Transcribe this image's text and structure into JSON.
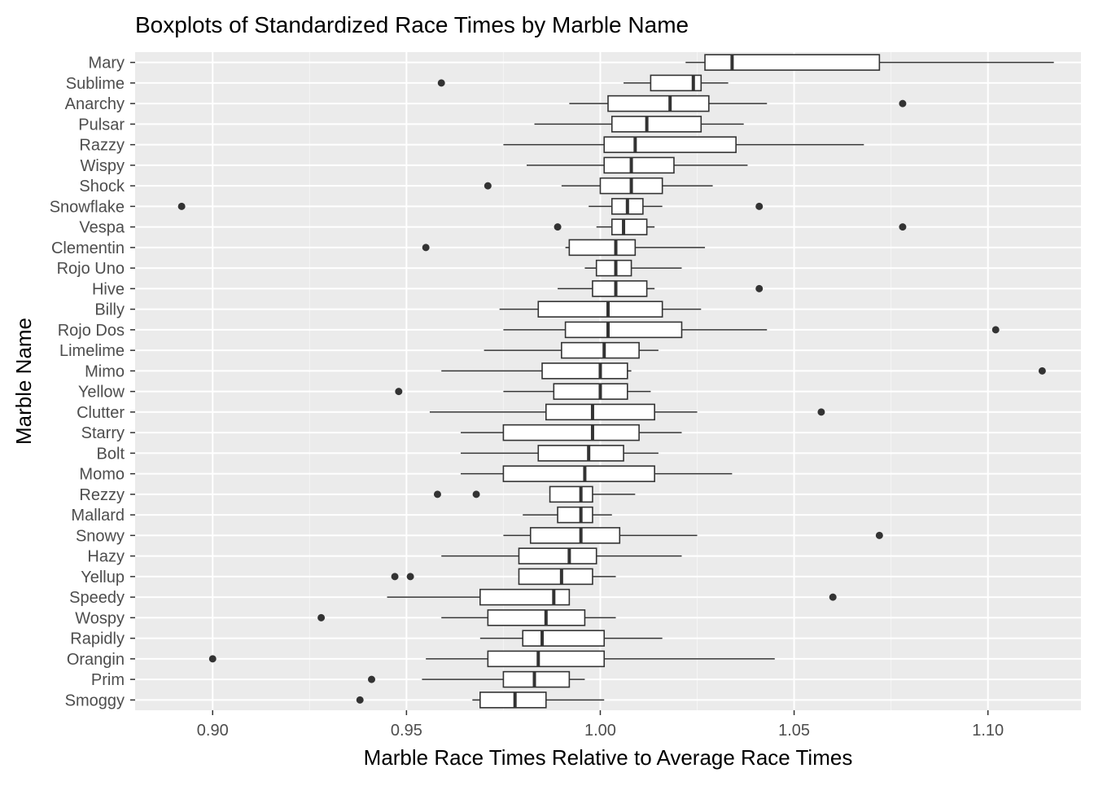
{
  "chart_data": {
    "type": "boxplot",
    "title": "Boxplots of Standardized Race Times by Marble Name",
    "xlabel": "Marble Race Times Relative to Average Race Times",
    "ylabel": "Marble Name",
    "xlim": [
      0.88,
      1.124
    ],
    "x_ticks": [
      0.9,
      0.95,
      1.0,
      1.05,
      1.1
    ],
    "x_tick_labels": [
      "0.90",
      "0.95",
      "1.00",
      "1.05",
      "1.10"
    ],
    "grid": true,
    "colors": {
      "panel_background": "#ebebeb",
      "grid_major": "#ffffff",
      "grid_minor": "#f5f5f5",
      "box_fill": "#ffffff",
      "box_stroke": "#333333",
      "outlier": "#333333",
      "text": "#000000",
      "tick_text": "#4d4d4d"
    },
    "categories": [
      "Mary",
      "Sublime",
      "Anarchy",
      "Pulsar",
      "Razzy",
      "Wispy",
      "Shock",
      "Snowflake",
      "Vespa",
      "Clementin",
      "Rojo Uno",
      "Hive",
      "Billy",
      "Rojo Dos",
      "Limelime",
      "Mimo",
      "Yellow",
      "Clutter",
      "Starry",
      "Bolt",
      "Momo",
      "Rezzy",
      "Mallard",
      "Snowy",
      "Hazy",
      "Yellup",
      "Speedy",
      "Wospy",
      "Rapidly",
      "Orangin",
      "Prim",
      "Smoggy"
    ],
    "boxes": [
      {
        "name": "Mary",
        "min": 1.022,
        "q1": 1.027,
        "median": 1.034,
        "q3": 1.072,
        "max": 1.117,
        "outliers": []
      },
      {
        "name": "Sublime",
        "min": 1.006,
        "q1": 1.013,
        "median": 1.024,
        "q3": 1.026,
        "max": 1.033,
        "outliers": [
          0.959
        ]
      },
      {
        "name": "Anarchy",
        "min": 0.992,
        "q1": 1.002,
        "median": 1.018,
        "q3": 1.028,
        "max": 1.043,
        "outliers": [
          1.078
        ]
      },
      {
        "name": "Pulsar",
        "min": 0.983,
        "q1": 1.003,
        "median": 1.012,
        "q3": 1.026,
        "max": 1.037,
        "outliers": []
      },
      {
        "name": "Razzy",
        "min": 0.975,
        "q1": 1.001,
        "median": 1.009,
        "q3": 1.035,
        "max": 1.068,
        "outliers": []
      },
      {
        "name": "Wispy",
        "min": 0.981,
        "q1": 1.001,
        "median": 1.008,
        "q3": 1.019,
        "max": 1.038,
        "outliers": []
      },
      {
        "name": "Shock",
        "min": 0.99,
        "q1": 1.0,
        "median": 1.008,
        "q3": 1.016,
        "max": 1.029,
        "outliers": [
          0.971
        ]
      },
      {
        "name": "Snowflake",
        "min": 0.997,
        "q1": 1.003,
        "median": 1.007,
        "q3": 1.011,
        "max": 1.016,
        "outliers": [
          0.892,
          1.041
        ]
      },
      {
        "name": "Vespa",
        "min": 0.999,
        "q1": 1.003,
        "median": 1.006,
        "q3": 1.012,
        "max": 1.014,
        "outliers": [
          0.989,
          1.078
        ]
      },
      {
        "name": "Clementin",
        "min": 0.991,
        "q1": 0.992,
        "median": 1.004,
        "q3": 1.009,
        "max": 1.027,
        "outliers": [
          0.955
        ]
      },
      {
        "name": "Rojo Uno",
        "min": 0.996,
        "q1": 0.999,
        "median": 1.004,
        "q3": 1.008,
        "max": 1.021,
        "outliers": []
      },
      {
        "name": "Hive",
        "min": 0.989,
        "q1": 0.998,
        "median": 1.004,
        "q3": 1.012,
        "max": 1.014,
        "outliers": [
          1.041
        ]
      },
      {
        "name": "Billy",
        "min": 0.974,
        "q1": 0.984,
        "median": 1.002,
        "q3": 1.016,
        "max": 1.026,
        "outliers": []
      },
      {
        "name": "Rojo Dos",
        "min": 0.975,
        "q1": 0.991,
        "median": 1.002,
        "q3": 1.021,
        "max": 1.043,
        "outliers": [
          1.102
        ]
      },
      {
        "name": "Limelime",
        "min": 0.97,
        "q1": 0.99,
        "median": 1.001,
        "q3": 1.01,
        "max": 1.015,
        "outliers": []
      },
      {
        "name": "Mimo",
        "min": 0.959,
        "q1": 0.985,
        "median": 1.0,
        "q3": 1.007,
        "max": 1.008,
        "outliers": [
          1.114
        ]
      },
      {
        "name": "Yellow",
        "min": 0.975,
        "q1": 0.988,
        "median": 1.0,
        "q3": 1.007,
        "max": 1.013,
        "outliers": [
          0.948
        ]
      },
      {
        "name": "Clutter",
        "min": 0.956,
        "q1": 0.986,
        "median": 0.998,
        "q3": 1.014,
        "max": 1.025,
        "outliers": [
          1.057
        ]
      },
      {
        "name": "Starry",
        "min": 0.964,
        "q1": 0.975,
        "median": 0.998,
        "q3": 1.01,
        "max": 1.021,
        "outliers": []
      },
      {
        "name": "Bolt",
        "min": 0.964,
        "q1": 0.984,
        "median": 0.997,
        "q3": 1.006,
        "max": 1.015,
        "outliers": []
      },
      {
        "name": "Momo",
        "min": 0.964,
        "q1": 0.975,
        "median": 0.996,
        "q3": 1.014,
        "max": 1.034,
        "outliers": []
      },
      {
        "name": "Rezzy",
        "min": 0.987,
        "q1": 0.987,
        "median": 0.995,
        "q3": 0.998,
        "max": 1.009,
        "outliers": [
          0.958,
          0.968
        ]
      },
      {
        "name": "Mallard",
        "min": 0.98,
        "q1": 0.989,
        "median": 0.995,
        "q3": 0.998,
        "max": 1.003,
        "outliers": []
      },
      {
        "name": "Snowy",
        "min": 0.975,
        "q1": 0.982,
        "median": 0.995,
        "q3": 1.005,
        "max": 1.025,
        "outliers": [
          1.072
        ]
      },
      {
        "name": "Hazy",
        "min": 0.959,
        "q1": 0.979,
        "median": 0.992,
        "q3": 0.999,
        "max": 1.021,
        "outliers": []
      },
      {
        "name": "Yellup",
        "min": 0.979,
        "q1": 0.979,
        "median": 0.99,
        "q3": 0.998,
        "max": 1.004,
        "outliers": [
          0.947,
          0.951
        ]
      },
      {
        "name": "Speedy",
        "min": 0.945,
        "q1": 0.969,
        "median": 0.988,
        "q3": 0.992,
        "max": 0.992,
        "outliers": [
          1.06
        ]
      },
      {
        "name": "Wospy",
        "min": 0.959,
        "q1": 0.971,
        "median": 0.986,
        "q3": 0.996,
        "max": 1.004,
        "outliers": [
          0.928
        ]
      },
      {
        "name": "Rapidly",
        "min": 0.969,
        "q1": 0.98,
        "median": 0.985,
        "q3": 1.001,
        "max": 1.016,
        "outliers": []
      },
      {
        "name": "Orangin",
        "min": 0.955,
        "q1": 0.971,
        "median": 0.984,
        "q3": 1.001,
        "max": 1.045,
        "outliers": [
          0.9
        ]
      },
      {
        "name": "Prim",
        "min": 0.954,
        "q1": 0.975,
        "median": 0.983,
        "q3": 0.992,
        "max": 0.996,
        "outliers": [
          0.941
        ]
      },
      {
        "name": "Smoggy",
        "min": 0.967,
        "q1": 0.969,
        "median": 0.978,
        "q3": 0.986,
        "max": 1.001,
        "outliers": [
          0.938
        ]
      }
    ]
  }
}
